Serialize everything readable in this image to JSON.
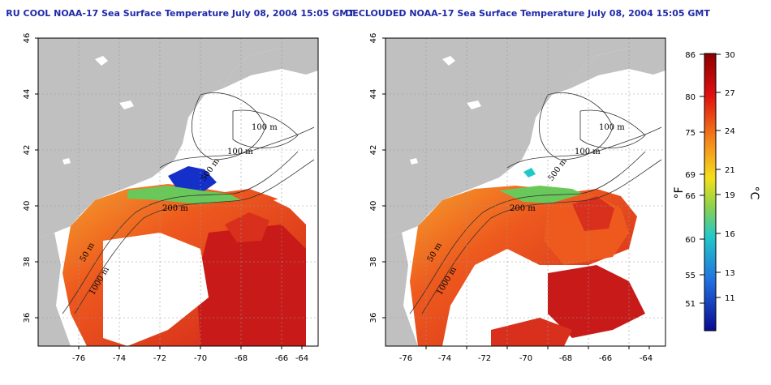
{
  "maps": [
    {
      "title": "RU COOL NOAA-17 Sea Surface Temperature July 08, 2004 15:05 GMT",
      "x_ticks": [
        "-76",
        "-74",
        "-72",
        "-70",
        "-68",
        "-66",
        "-64"
      ],
      "y_ticks": [
        "46",
        "44",
        "42",
        "40",
        "38",
        "36"
      ],
      "contour_labels": [
        "100 m",
        "100 m",
        "500 m",
        "200 m",
        "50 m",
        "1000 m"
      ]
    },
    {
      "title": "DECLOUDED NOAA-17 Sea Surface Temperature July 08, 2004 15:05 GMT",
      "x_ticks": [
        "-76",
        "-74",
        "-72",
        "-70",
        "-68",
        "-66",
        "-64"
      ],
      "y_ticks": [
        "46",
        "44",
        "42",
        "40",
        "38",
        "36"
      ],
      "contour_labels": [
        "100 m",
        "100 m",
        "500 m",
        "200 m",
        "50 m",
        "1000 m"
      ]
    }
  ],
  "colorbar": {
    "fahrenheit_ticks": [
      "86",
      "80",
      "75",
      "69",
      "66",
      "60",
      "55",
      "51"
    ],
    "celsius_ticks": [
      "30",
      "27",
      "24",
      "21",
      "19",
      "16",
      "13",
      "11"
    ],
    "fahrenheit_label": "°F",
    "celsius_label": "°C"
  },
  "colors": {
    "land": "#c0c0c0",
    "title": "#1f2aa8",
    "warm": "#e8331c",
    "hot": "#b0141a",
    "cold": "#1530c8"
  }
}
